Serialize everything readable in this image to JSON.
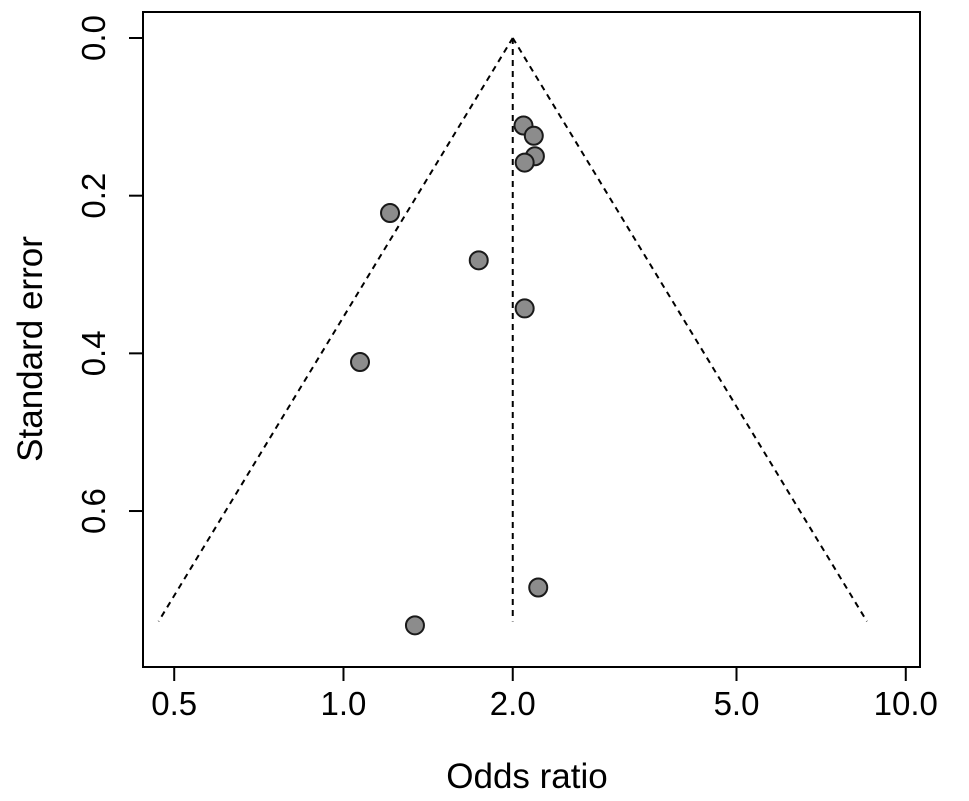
{
  "chart_data": {
    "type": "scatter",
    "title": "",
    "xlabel": "Odds ratio",
    "ylabel": "Standard error",
    "x_scale": "log",
    "y_reversed": true,
    "xlim": [
      0.44,
      10.6
    ],
    "ylim": [
      0.0,
      0.775
    ],
    "x_ticks": [
      {
        "value": 0.5,
        "label": "0.5"
      },
      {
        "value": 1.0,
        "label": "1.0"
      },
      {
        "value": 2.0,
        "label": "2.0"
      },
      {
        "value": 5.0,
        "label": "5.0"
      },
      {
        "value": 10.0,
        "label": "10.0"
      }
    ],
    "y_ticks": [
      {
        "value": 0.0,
        "label": "0.0"
      },
      {
        "value": 0.2,
        "label": "0.2"
      },
      {
        "value": 0.4,
        "label": "0.4"
      },
      {
        "value": 0.6,
        "label": "0.6"
      }
    ],
    "pooled_or": 2.0,
    "funnel_se_max": 0.74,
    "points": [
      {
        "x": 2.09,
        "y": 0.111
      },
      {
        "x": 2.18,
        "y": 0.124
      },
      {
        "x": 2.19,
        "y": 0.15
      },
      {
        "x": 2.1,
        "y": 0.158
      },
      {
        "x": 1.21,
        "y": 0.222
      },
      {
        "x": 1.74,
        "y": 0.282
      },
      {
        "x": 2.1,
        "y": 0.343
      },
      {
        "x": 1.07,
        "y": 0.411
      },
      {
        "x": 2.22,
        "y": 0.697
      },
      {
        "x": 1.34,
        "y": 0.745
      }
    ],
    "grid": false,
    "colors": {
      "point_fill": "#8c8c8c",
      "point_stroke": "#1a1a1a",
      "line": "#000000"
    }
  }
}
